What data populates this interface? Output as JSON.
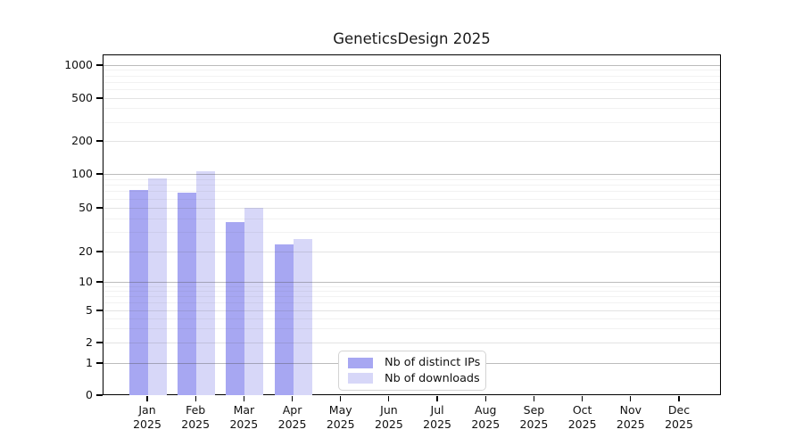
{
  "title": "GeneticsDesign 2025",
  "chart_data": {
    "type": "bar",
    "title": "GeneticsDesign 2025",
    "categories": [
      "Jan 2025",
      "Feb 2025",
      "Mar 2025",
      "Apr 2025",
      "May 2025",
      "Jun 2025",
      "Jul 2025",
      "Aug 2025",
      "Sep 2025",
      "Oct 2025",
      "Nov 2025",
      "Dec 2025"
    ],
    "x_tick_lines": [
      {
        "month": "Jan",
        "year": "2025"
      },
      {
        "month": "Feb",
        "year": "2025"
      },
      {
        "month": "Mar",
        "year": "2025"
      },
      {
        "month": "Apr",
        "year": "2025"
      },
      {
        "month": "May",
        "year": "2025"
      },
      {
        "month": "Jun",
        "year": "2025"
      },
      {
        "month": "Jul",
        "year": "2025"
      },
      {
        "month": "Aug",
        "year": "2025"
      },
      {
        "month": "Sep",
        "year": "2025"
      },
      {
        "month": "Oct",
        "year": "2025"
      },
      {
        "month": "Nov",
        "year": "2025"
      },
      {
        "month": "Dec",
        "year": "2025"
      }
    ],
    "series": [
      {
        "name": "Nb of distinct IPs",
        "color": "#a7a7f2",
        "values": [
          72,
          68,
          37,
          23,
          null,
          null,
          null,
          null,
          null,
          null,
          null,
          null
        ]
      },
      {
        "name": "Nb of downloads",
        "color": "#d7d7f8",
        "values": [
          91,
          105,
          50,
          26,
          null,
          null,
          null,
          null,
          null,
          null,
          null,
          null
        ]
      }
    ],
    "y_axis": {
      "scale": "log",
      "tick_values": [
        0,
        1,
        2,
        5,
        10,
        20,
        50,
        100,
        200,
        500,
        1000
      ],
      "tick_labels": [
        "0",
        "1",
        "2",
        "5",
        "10",
        "20",
        "50",
        "100",
        "200",
        "500",
        "1000"
      ],
      "range_top": 1000
    },
    "grid": true,
    "legend_position": "inside-bottom"
  },
  "legend": {
    "items": [
      {
        "label": "Nb of distinct IPs"
      },
      {
        "label": "Nb of downloads"
      }
    ]
  }
}
